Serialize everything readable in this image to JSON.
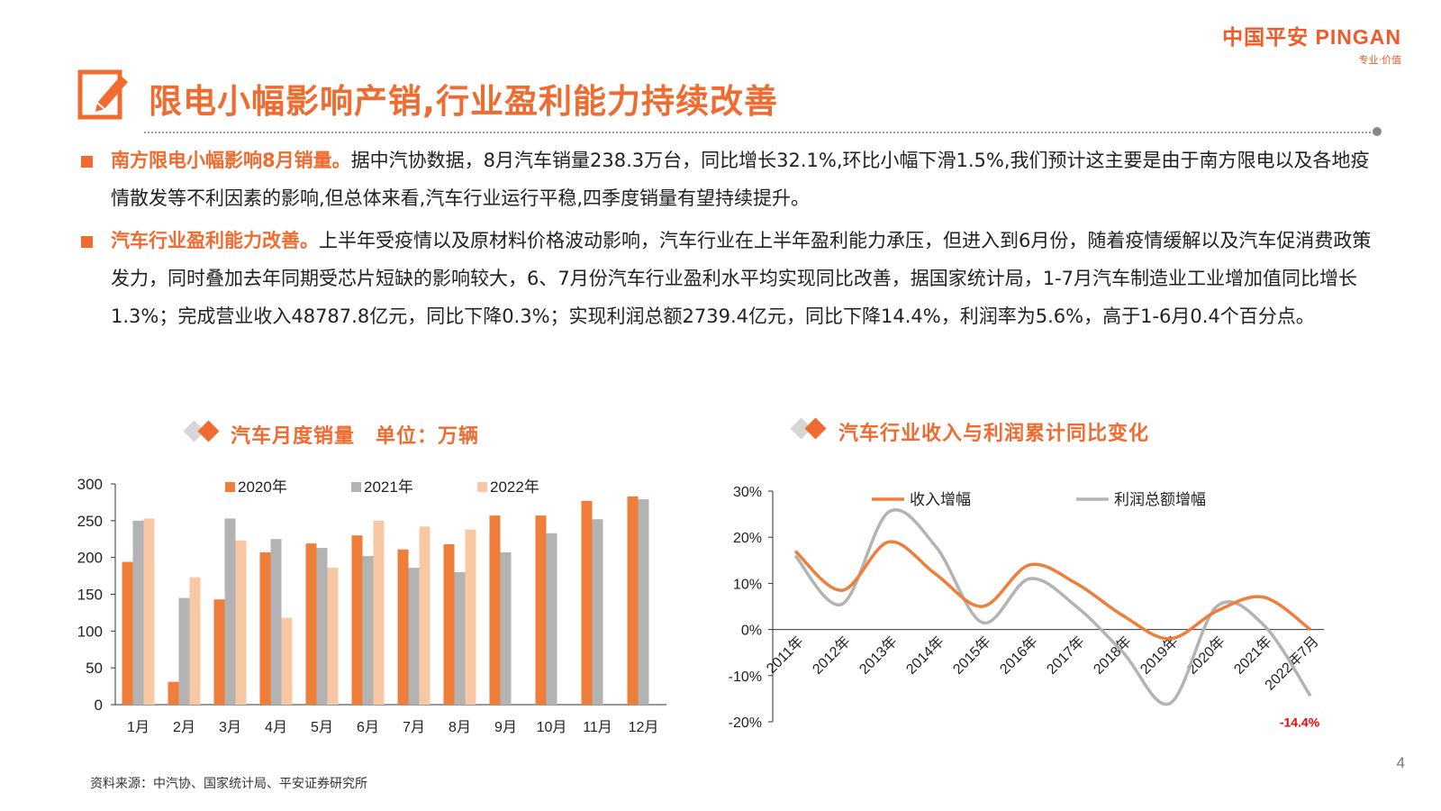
{
  "logo": {
    "brand": "中国平安 PINGAN",
    "tagline": "专业·价值"
  },
  "title": "限电小幅影响产销,行业盈利能力持续改善",
  "bullets": [
    {
      "highlight": "南方限电小幅影响8月销量。",
      "text": "据中汽协数据，8月汽车销量238.3万台，同比增长32.1%,环比小幅下滑1.5%,我们预计这主要是由于南方限电以及各地疫情散发等不利因素的影响,但总体来看,汽车行业运行平稳,四季度销量有望持续提升。"
    },
    {
      "highlight": "汽车行业盈利能力改善。",
      "text": "上半年受疫情以及原材料价格波动影响，汽车行业在上半年盈利能力承压，但进入到6月份，随着疫情缓解以及汽车促消费政策发力，同时叠加去年同期受芯片短缺的影响较大，6、7月份汽车行业盈利水平均实现同比改善，据国家统计局，1-7月汽车制造业工业增加值同比增长1.3%；完成营业收入48787.8亿元，同比下降0.3%；实现利润总额2739.4亿元，同比下降14.4%，利润率为5.6%，高于1-6月0.4个百分点。"
    }
  ],
  "chart_titles": {
    "left": "汽车月度销量　单位：万辆",
    "right": "汽车行业收入与利润累计同比变化"
  },
  "source": "资料来源：中汽协、国家统计局、平安证券研究所",
  "page_number": "4",
  "colors": {
    "accent": "#ef6b2f",
    "gray": "#b0b0b0",
    "light": "#f8c8a4"
  },
  "chart_data": [
    {
      "type": "bar",
      "categories": [
        "1月",
        "2月",
        "3月",
        "4月",
        "5月",
        "6月",
        "7月",
        "8月",
        "9月",
        "10月",
        "11月",
        "12月"
      ],
      "series": [
        {
          "name": "2020年",
          "color": "#ef7e3a",
          "values": [
            194,
            31,
            143,
            207,
            219,
            230,
            211,
            218,
            257,
            257,
            277,
            283
          ]
        },
        {
          "name": "2021年",
          "color": "#b3b3b3",
          "values": [
            250,
            145,
            253,
            225,
            213,
            202,
            186,
            180,
            207,
            233,
            252,
            279
          ]
        },
        {
          "name": "2022年",
          "color": "#f8c8a4",
          "values": [
            253,
            173,
            223,
            118,
            186,
            250,
            242,
            238,
            null,
            null,
            null,
            null
          ]
        }
      ],
      "yticks": [
        "0",
        "50",
        "100",
        "150",
        "200",
        "250",
        "300"
      ],
      "ylim": [
        0,
        300
      ]
    },
    {
      "type": "line",
      "x": [
        "2011年",
        "2012年",
        "2013年",
        "2014年",
        "2015年",
        "2016年",
        "2017年",
        "2018年",
        "2019年",
        "2020年",
        "2021年",
        "2022年7月"
      ],
      "series": [
        {
          "name": "收入增幅",
          "color": "#ef7e3a",
          "values": [
            17,
            8.5,
            19,
            12,
            5,
            14,
            10,
            3,
            -2,
            4,
            7,
            0
          ]
        },
        {
          "name": "利润总额增幅",
          "color": "#b3b3b3",
          "values": [
            16,
            5.5,
            25.5,
            18,
            1.5,
            11,
            5,
            -5,
            -16,
            5,
            1,
            -14.4
          ]
        }
      ],
      "yticks": [
        "30%",
        "20%",
        "10%",
        "0%",
        "-10%",
        "-20%"
      ],
      "ylim": [
        -20,
        30
      ],
      "annotation": "-14.4%",
      "annotation_color": "#ff0000"
    }
  ]
}
